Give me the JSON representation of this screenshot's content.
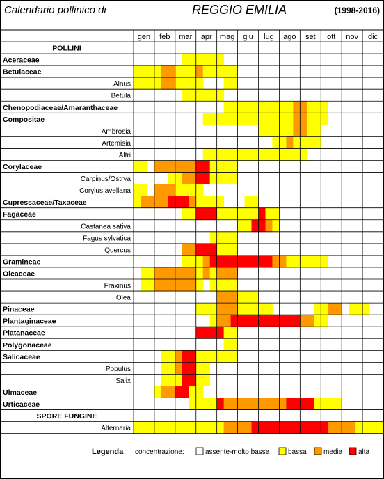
{
  "header": {
    "title_left": "Calendario pollinico di",
    "title_city": "REGGIO EMILIA",
    "title_years": "(1998-2016)"
  },
  "legend": {
    "title": "Legenda",
    "label": "concentrazione:",
    "levels": [
      {
        "name": "assente-molto bassa",
        "color": "#ffffff"
      },
      {
        "name": "bassa",
        "color": "#ffff00"
      },
      {
        "name": "media",
        "color": "#ff9900"
      },
      {
        "name": "alta",
        "color": "#ff0000"
      }
    ]
  },
  "chart_data": {
    "type": "heatmap",
    "title": "Calendario pollinico di REGGIO EMILIA (1998-2016)",
    "months": [
      "gen",
      "feb",
      "mar",
      "apr",
      "mag",
      "giu",
      "lug",
      "ago",
      "set",
      "ott",
      "nov",
      "dic"
    ],
    "value_scale": {
      "0": "assente-molto bassa",
      "1": "bassa",
      "2": "media",
      "3": "alta"
    },
    "columns_per_month": 3,
    "rows": [
      {
        "label": "POLLINI",
        "kind": "section",
        "values": []
      },
      {
        "label": "Aceraceae",
        "kind": "family",
        "values": [
          0,
          0,
          0,
          0,
          0,
          0,
          0,
          1,
          1,
          1,
          1,
          1,
          1,
          0,
          0,
          0,
          0,
          0,
          0,
          0,
          0,
          0,
          0,
          0,
          0,
          0,
          0,
          0,
          0,
          0,
          0,
          0,
          0,
          0,
          0,
          0
        ]
      },
      {
        "label": "Betulaceae",
        "kind": "family",
        "values": [
          1,
          1,
          1,
          1,
          2,
          2,
          1,
          1,
          1,
          2,
          1,
          1,
          1,
          1,
          1,
          0,
          0,
          0,
          0,
          0,
          0,
          0,
          0,
          0,
          0,
          0,
          0,
          0,
          0,
          0,
          0,
          0,
          0,
          0,
          0,
          0
        ]
      },
      {
        "label": "Alnus",
        "kind": "genus",
        "values": [
          1,
          1,
          1,
          1,
          2,
          2,
          1,
          1,
          1,
          1,
          0,
          0,
          0,
          1,
          1,
          0,
          0,
          0,
          0,
          0,
          0,
          0,
          0,
          0,
          0,
          0,
          0,
          0,
          0,
          0,
          0,
          0,
          0,
          0,
          0,
          0
        ]
      },
      {
        "label": "Betula",
        "kind": "genus",
        "values": [
          0,
          0,
          0,
          0,
          0,
          0,
          0,
          1,
          1,
          1,
          1,
          1,
          1,
          0,
          0,
          0,
          0,
          0,
          0,
          0,
          0,
          0,
          0,
          0,
          0,
          0,
          0,
          0,
          0,
          0,
          0,
          0,
          0,
          0,
          0,
          0
        ]
      },
      {
        "label": "Chenopodiaceae/Amaranthaceae",
        "kind": "family",
        "values": [
          0,
          0,
          0,
          0,
          0,
          0,
          0,
          0,
          0,
          0,
          0,
          0,
          0,
          1,
          1,
          1,
          1,
          1,
          1,
          1,
          1,
          1,
          1,
          2,
          2,
          1,
          1,
          1,
          0,
          0,
          0,
          0,
          0,
          0,
          0,
          0
        ]
      },
      {
        "label": "Compositae",
        "kind": "family",
        "values": [
          0,
          0,
          0,
          0,
          0,
          0,
          0,
          0,
          0,
          0,
          1,
          1,
          1,
          1,
          1,
          1,
          1,
          1,
          1,
          1,
          1,
          1,
          1,
          2,
          2,
          1,
          1,
          1,
          0,
          0,
          0,
          0,
          0,
          0,
          0,
          0
        ]
      },
      {
        "label": "Ambrosia",
        "kind": "genus",
        "values": [
          0,
          0,
          0,
          0,
          0,
          0,
          0,
          0,
          0,
          0,
          0,
          0,
          0,
          0,
          0,
          0,
          0,
          0,
          1,
          1,
          1,
          1,
          1,
          2,
          2,
          1,
          1,
          0,
          0,
          0,
          0,
          0,
          0,
          0,
          0,
          0
        ]
      },
      {
        "label": "Artemisia",
        "kind": "genus",
        "values": [
          0,
          0,
          0,
          0,
          0,
          0,
          0,
          0,
          0,
          0,
          0,
          0,
          0,
          0,
          0,
          0,
          0,
          0,
          0,
          0,
          1,
          1,
          2,
          1,
          1,
          1,
          1,
          0,
          0,
          0,
          0,
          0,
          0,
          0,
          0,
          0
        ]
      },
      {
        "label": "Altri",
        "kind": "genus",
        "values": [
          0,
          0,
          0,
          0,
          0,
          0,
          0,
          0,
          0,
          0,
          1,
          1,
          1,
          1,
          1,
          1,
          1,
          1,
          1,
          1,
          1,
          1,
          1,
          1,
          1,
          0,
          0,
          0,
          0,
          0,
          0,
          0,
          0,
          0,
          0,
          0
        ]
      },
      {
        "label": "Corylaceae",
        "kind": "family",
        "values": [
          1,
          1,
          0,
          2,
          2,
          2,
          2,
          2,
          2,
          3,
          3,
          1,
          1,
          1,
          1,
          0,
          0,
          0,
          0,
          0,
          0,
          0,
          0,
          0,
          0,
          0,
          0,
          0,
          0,
          0,
          0,
          0,
          0,
          0,
          0,
          0
        ]
      },
      {
        "label": "Carpinus/Ostrya",
        "kind": "genus",
        "values": [
          0,
          0,
          0,
          0,
          0,
          1,
          1,
          2,
          2,
          3,
          3,
          1,
          1,
          1,
          1,
          0,
          0,
          0,
          0,
          0,
          0,
          0,
          0,
          0,
          0,
          0,
          0,
          0,
          0,
          0,
          0,
          0,
          0,
          0,
          0,
          0
        ]
      },
      {
        "label": "Corylus avellana",
        "kind": "genus",
        "values": [
          1,
          1,
          0,
          2,
          2,
          2,
          1,
          1,
          1,
          1,
          0,
          0,
          0,
          0,
          0,
          0,
          0,
          0,
          0,
          0,
          0,
          0,
          0,
          0,
          0,
          0,
          0,
          0,
          0,
          0,
          0,
          0,
          0,
          0,
          0,
          0
        ]
      },
      {
        "label": "Cupressaceae/Taxaceae",
        "kind": "family",
        "values": [
          1,
          2,
          2,
          2,
          2,
          3,
          3,
          3,
          2,
          1,
          1,
          1,
          1,
          0,
          0,
          0,
          1,
          1,
          0,
          0,
          0,
          0,
          0,
          0,
          0,
          0,
          0,
          0,
          0,
          0,
          0,
          0,
          0,
          0,
          0,
          0
        ]
      },
      {
        "label": "Fagaceae",
        "kind": "family",
        "values": [
          0,
          0,
          0,
          0,
          0,
          0,
          0,
          1,
          1,
          3,
          3,
          3,
          1,
          1,
          1,
          1,
          1,
          1,
          3,
          1,
          1,
          0,
          0,
          0,
          0,
          0,
          0,
          0,
          0,
          0,
          0,
          0,
          0,
          0,
          0,
          0
        ]
      },
      {
        "label": "Castanea sativa",
        "kind": "genus",
        "values": [
          0,
          0,
          0,
          0,
          0,
          0,
          0,
          0,
          0,
          0,
          0,
          0,
          0,
          0,
          0,
          1,
          1,
          3,
          3,
          2,
          1,
          0,
          0,
          0,
          0,
          0,
          0,
          0,
          0,
          0,
          0,
          0,
          0,
          0,
          0,
          0
        ]
      },
      {
        "label": "Fagus sylvatica",
        "kind": "genus",
        "values": [
          0,
          0,
          0,
          0,
          0,
          0,
          0,
          0,
          0,
          0,
          0,
          1,
          1,
          1,
          1,
          0,
          0,
          0,
          0,
          0,
          0,
          0,
          0,
          0,
          0,
          0,
          0,
          0,
          0,
          0,
          0,
          0,
          0,
          0,
          0,
          0
        ]
      },
      {
        "label": "Quercus",
        "kind": "genus",
        "values": [
          0,
          0,
          0,
          0,
          0,
          0,
          0,
          2,
          2,
          3,
          3,
          3,
          1,
          1,
          1,
          0,
          0,
          0,
          0,
          0,
          0,
          0,
          0,
          0,
          0,
          0,
          0,
          0,
          0,
          0,
          0,
          0,
          0,
          0,
          0,
          0
        ]
      },
      {
        "label": "Gramineae",
        "kind": "family",
        "values": [
          0,
          0,
          0,
          0,
          0,
          0,
          0,
          1,
          1,
          1,
          2,
          3,
          3,
          3,
          3,
          3,
          3,
          3,
          3,
          3,
          2,
          2,
          1,
          1,
          1,
          1,
          1,
          1,
          0,
          0,
          0,
          0,
          0,
          0,
          0,
          0
        ]
      },
      {
        "label": "Oleaceae",
        "kind": "family",
        "values": [
          0,
          1,
          1,
          2,
          2,
          2,
          2,
          2,
          2,
          1,
          2,
          1,
          2,
          2,
          2,
          0,
          0,
          0,
          0,
          0,
          0,
          0,
          0,
          0,
          0,
          0,
          0,
          0,
          0,
          0,
          0,
          0,
          0,
          0,
          0,
          0
        ]
      },
      {
        "label": "Fraxinus",
        "kind": "genus",
        "values": [
          0,
          1,
          1,
          2,
          2,
          2,
          2,
          2,
          2,
          1,
          0,
          1,
          1,
          1,
          1,
          0,
          0,
          0,
          0,
          0,
          0,
          0,
          0,
          0,
          0,
          0,
          0,
          0,
          0,
          0,
          0,
          0,
          0,
          0,
          0,
          0
        ]
      },
      {
        "label": "Olea",
        "kind": "genus",
        "values": [
          0,
          0,
          0,
          0,
          0,
          0,
          0,
          0,
          0,
          0,
          0,
          0,
          2,
          2,
          2,
          1,
          1,
          1,
          0,
          0,
          0,
          0,
          0,
          0,
          0,
          0,
          0,
          0,
          0,
          0,
          0,
          0,
          0,
          0,
          0,
          0
        ]
      },
      {
        "label": "Pinaceae",
        "kind": "family",
        "values": [
          0,
          0,
          0,
          0,
          0,
          0,
          0,
          0,
          0,
          1,
          1,
          1,
          2,
          2,
          2,
          1,
          1,
          1,
          1,
          1,
          0,
          0,
          0,
          0,
          0,
          0,
          1,
          1,
          2,
          2,
          0,
          1,
          1,
          1,
          0,
          0
        ]
      },
      {
        "label": "Plantaginaceae",
        "kind": "family",
        "values": [
          0,
          0,
          0,
          0,
          0,
          0,
          0,
          0,
          0,
          0,
          0,
          1,
          2,
          2,
          3,
          3,
          3,
          3,
          3,
          3,
          3,
          3,
          3,
          3,
          2,
          2,
          1,
          1,
          0,
          0,
          0,
          0,
          0,
          0,
          0,
          0
        ]
      },
      {
        "label": "Platanaceae",
        "kind": "family",
        "values": [
          0,
          0,
          0,
          0,
          0,
          0,
          0,
          0,
          0,
          3,
          3,
          3,
          3,
          1,
          1,
          0,
          0,
          0,
          0,
          0,
          0,
          0,
          0,
          0,
          0,
          0,
          0,
          0,
          0,
          0,
          0,
          0,
          0,
          0,
          0,
          0
        ]
      },
      {
        "label": "Polygonaceae",
        "kind": "family",
        "values": [
          0,
          0,
          0,
          0,
          0,
          0,
          0,
          0,
          0,
          0,
          0,
          0,
          0,
          1,
          1,
          0,
          0,
          0,
          0,
          0,
          0,
          0,
          0,
          0,
          0,
          0,
          0,
          0,
          0,
          0,
          0,
          0,
          0,
          0,
          0,
          0
        ]
      },
      {
        "label": "Salicaceae",
        "kind": "family",
        "values": [
          0,
          0,
          0,
          0,
          1,
          1,
          2,
          3,
          3,
          1,
          1,
          1,
          1,
          1,
          1,
          0,
          0,
          0,
          0,
          0,
          0,
          0,
          0,
          0,
          0,
          0,
          0,
          0,
          0,
          0,
          0,
          0,
          0,
          0,
          0,
          0
        ]
      },
      {
        "label": "Populus",
        "kind": "genus",
        "values": [
          0,
          0,
          0,
          0,
          1,
          1,
          2,
          3,
          3,
          1,
          1,
          0,
          0,
          0,
          0,
          0,
          0,
          0,
          0,
          0,
          0,
          0,
          0,
          0,
          0,
          0,
          0,
          0,
          0,
          0,
          0,
          0,
          0,
          0,
          0,
          0
        ]
      },
      {
        "label": "Salix",
        "kind": "genus",
        "values": [
          0,
          0,
          0,
          0,
          1,
          1,
          1,
          3,
          3,
          1,
          1,
          0,
          0,
          0,
          0,
          0,
          0,
          0,
          0,
          0,
          0,
          0,
          0,
          0,
          0,
          0,
          0,
          0,
          0,
          0,
          0,
          0,
          0,
          0,
          0,
          0
        ]
      },
      {
        "label": "Ulmaceae",
        "kind": "family",
        "values": [
          0,
          0,
          0,
          1,
          2,
          2,
          3,
          3,
          1,
          1,
          0,
          0,
          0,
          0,
          0,
          0,
          0,
          0,
          0,
          0,
          0,
          0,
          0,
          0,
          0,
          0,
          0,
          0,
          0,
          0,
          0,
          0,
          0,
          0,
          0,
          0
        ]
      },
      {
        "label": "Urticaceae",
        "kind": "family",
        "values": [
          0,
          0,
          0,
          0,
          0,
          0,
          0,
          0,
          1,
          1,
          1,
          1,
          3,
          2,
          2,
          2,
          2,
          2,
          2,
          2,
          2,
          2,
          3,
          3,
          3,
          3,
          1,
          1,
          1,
          1,
          0,
          0,
          0,
          0,
          0,
          0
        ]
      },
      {
        "label": "SPORE FUNGINE",
        "kind": "section",
        "values": []
      },
      {
        "label": "Alternaria",
        "kind": "genus",
        "values": [
          1,
          1,
          1,
          1,
          1,
          1,
          1,
          1,
          1,
          1,
          1,
          1,
          1,
          2,
          2,
          2,
          2,
          3,
          3,
          3,
          3,
          3,
          3,
          3,
          3,
          3,
          3,
          3,
          2,
          2,
          2,
          2,
          1,
          1,
          1,
          1
        ]
      }
    ]
  }
}
